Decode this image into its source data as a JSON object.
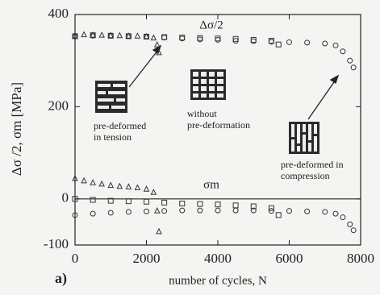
{
  "chart_data": {
    "type": "scatter",
    "x_label": "number of cycles, N",
    "y_label": "Δσ /2, σm [MPa]",
    "panel_label": "a)",
    "amplitude_label": "Δσ/2",
    "mean_label": "σm",
    "annotations": [
      [
        "pre-deformed",
        "in tension"
      ],
      [
        "without",
        "pre-deformation"
      ],
      [
        "pre-deformed in",
        "compression"
      ]
    ],
    "xlim": [
      0,
      8000
    ],
    "xticks": [
      0,
      2000,
      4000,
      6000,
      8000
    ],
    "ylim": [
      -100,
      400
    ],
    "yticks": [
      -100,
      0,
      200,
      400
    ],
    "zero_line": true,
    "series": [
      {
        "marker": "triangle",
        "color": "#333333",
        "x": [
          0,
          250,
          500,
          750,
          1000,
          1250,
          1500,
          1750,
          2000,
          2200,
          2300,
          2350
        ],
        "values": [
          355,
          357,
          356,
          356,
          355,
          355,
          354,
          354,
          353,
          350,
          335,
          318
        ]
      },
      {
        "marker": "triangle",
        "color": "#333333",
        "x": [
          0,
          250,
          500,
          750,
          1000,
          1250,
          1500,
          1750,
          2000,
          2200,
          2300,
          2350
        ],
        "values": [
          45,
          40,
          36,
          33,
          30,
          28,
          27,
          25,
          22,
          15,
          -25,
          -70
        ]
      },
      {
        "marker": "square",
        "color": "#333333",
        "x": [
          0,
          500,
          1000,
          1500,
          2000,
          2500,
          3000,
          3500,
          4000,
          4500,
          5000,
          5500,
          5700
        ],
        "values": [
          353,
          355,
          354,
          353,
          352,
          351,
          350,
          349,
          348,
          347,
          345,
          343,
          335
        ]
      },
      {
        "marker": "square",
        "color": "#333333",
        "x": [
          0,
          500,
          1000,
          1500,
          2000,
          2500,
          3000,
          3500,
          4000,
          4500,
          5000,
          5500,
          5700
        ],
        "values": [
          0,
          -2,
          -4,
          -5,
          -6,
          -8,
          -10,
          -11,
          -12,
          -14,
          -16,
          -20,
          -35
        ]
      },
      {
        "marker": "circle",
        "color": "#333333",
        "x": [
          0,
          500,
          1000,
          1500,
          2000,
          2500,
          3000,
          3500,
          4000,
          4500,
          5000,
          5500,
          6000,
          6500,
          7000,
          7300,
          7500,
          7700,
          7800
        ],
        "values": [
          352,
          354,
          354,
          353,
          352,
          350,
          348,
          346,
          345,
          343,
          342,
          341,
          340,
          339,
          337,
          333,
          320,
          300,
          285
        ]
      },
      {
        "marker": "circle",
        "color": "#333333",
        "x": [
          0,
          500,
          1000,
          1500,
          2000,
          2500,
          3000,
          3500,
          4000,
          4500,
          5000,
          5500,
          6000,
          6500,
          7000,
          7300,
          7500,
          7700,
          7800
        ],
        "values": [
          -35,
          -32,
          -30,
          -28,
          -27,
          -26,
          -25,
          -25,
          -25,
          -25,
          -25,
          -26,
          -26,
          -27,
          -28,
          -32,
          -40,
          -55,
          -68
        ]
      }
    ]
  }
}
